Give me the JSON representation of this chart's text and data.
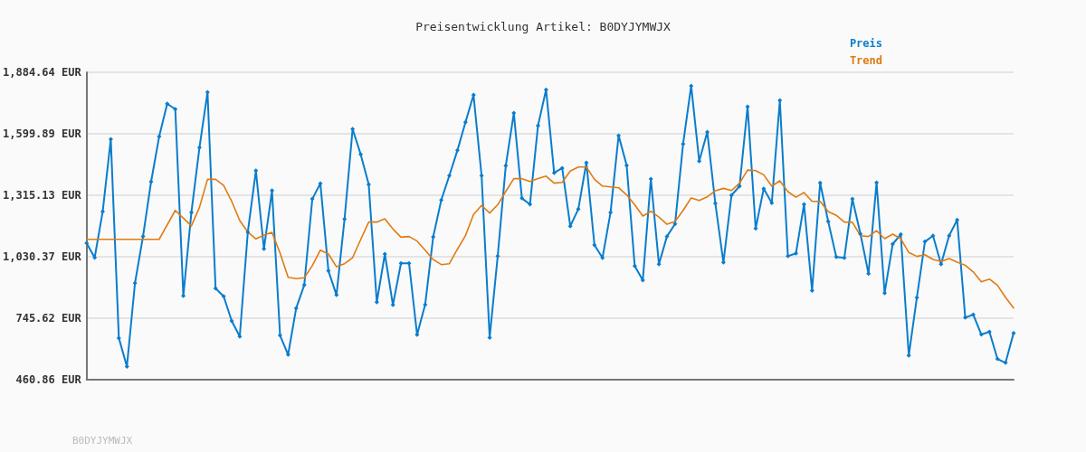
{
  "chart_data": {
    "type": "line",
    "title": "Preisentwicklung Artikel: B0DYJYMWJX",
    "annotations": [
      "B0DYJYMWJX"
    ],
    "categories": [
      null,
      null,
      null,
      null,
      null,
      null,
      null,
      null,
      null,
      null,
      null,
      null,
      null,
      null,
      null,
      null,
      null,
      null,
      null,
      null,
      null,
      null,
      null,
      null,
      null,
      null,
      null,
      null,
      null,
      null,
      null,
      null,
      null,
      null,
      null,
      null,
      null,
      null,
      null,
      null,
      null,
      null,
      null,
      null,
      null,
      null,
      null,
      null,
      null,
      null,
      null,
      null,
      null,
      null,
      null,
      null,
      null,
      null,
      null,
      null,
      null,
      null,
      null,
      null,
      null,
      null,
      null,
      null,
      null,
      null,
      null,
      null,
      null,
      null,
      null,
      null,
      null,
      null,
      null,
      null,
      null,
      null,
      null,
      null,
      null,
      null,
      null,
      null,
      null,
      null,
      null,
      null,
      null,
      null,
      null,
      null,
      null,
      null,
      null,
      null,
      null,
      null,
      null,
      null,
      null,
      null,
      null,
      null,
      null,
      null,
      null,
      null,
      null,
      null,
      null,
      null
    ],
    "series": [
      {
        "name": "Preis",
        "color": "#0a7dcc",
        "marker": "diamond",
        "values": [
          1093,
          1026,
          1240,
          1575,
          654,
          522,
          908,
          1125,
          1378,
          1587,
          1739,
          1714,
          849,
          1236,
          1536,
          1793,
          884,
          847,
          733,
          661,
          1145,
          1429,
          1067,
          1337,
          666,
          577,
          792,
          899,
          1298,
          1370,
          965,
          853,
          1205,
          1622,
          1505,
          1365,
          820,
          1043,
          807,
          1000,
          1000,
          669,
          808,
          1123,
          1293,
          1406,
          1523,
          1653,
          1780,
          1406,
          656,
          1033,
          1452,
          1696,
          1301,
          1273,
          1638,
          1804,
          1419,
          1441,
          1172,
          1251,
          1466,
          1085,
          1025,
          1236,
          1592,
          1453,
          987,
          922,
          1391,
          996,
          1125,
          1182,
          1553,
          1822,
          1473,
          1608,
          1277,
          1004,
          1315,
          1357,
          1726,
          1161,
          1346,
          1280,
          1755,
          1033,
          1046,
          1273,
          873,
          1373,
          1194,
          1029,
          1025,
          1298,
          1136,
          952,
          1374,
          862,
          1089,
          1134,
          573,
          841,
          1100,
          1128,
          996,
          1128,
          1201,
          749,
          762,
          670,
          683,
          557,
          539,
          677
        ]
      },
      {
        "name": "Trend",
        "color": "#e07b10",
        "marker": "none",
        "values": [
          1111,
          1111,
          1111,
          1111,
          1111,
          1111,
          1111,
          1111,
          1111,
          1111,
          1178,
          1245,
          1209,
          1173,
          1259,
          1389,
          1389,
          1361,
          1287,
          1198,
          1145,
          1113,
          1131,
          1143,
          1047,
          935,
          929,
          933,
          989,
          1061,
          1043,
          984,
          998,
          1026,
          1110,
          1191,
          1191,
          1206,
          1159,
          1121,
          1124,
          1103,
          1061,
          1017,
          994,
          998,
          1065,
          1128,
          1226,
          1268,
          1233,
          1271,
          1333,
          1392,
          1392,
          1379,
          1393,
          1404,
          1371,
          1375,
          1427,
          1446,
          1446,
          1389,
          1358,
          1354,
          1350,
          1317,
          1271,
          1219,
          1241,
          1214,
          1181,
          1194,
          1245,
          1303,
          1291,
          1308,
          1336,
          1347,
          1337,
          1371,
          1432,
          1429,
          1410,
          1357,
          1382,
          1332,
          1306,
          1328,
          1287,
          1287,
          1240,
          1222,
          1191,
          1190,
          1128,
          1124,
          1151,
          1114,
          1135,
          1114,
          1050,
          1032,
          1040,
          1018,
          1008,
          1022,
          1005,
          991,
          960,
          914,
          927,
          898,
          842,
          793
        ]
      }
    ],
    "ylim": [
      460.86,
      1884.64
    ],
    "yticks": [
      {
        "value": 460.86,
        "label": "460.86 EUR"
      },
      {
        "value": 745.62,
        "label": "745.62 EUR"
      },
      {
        "value": 1030.37,
        "label": "1,030.37 EUR"
      },
      {
        "value": 1315.13,
        "label": "1,315.13 EUR"
      },
      {
        "value": 1599.89,
        "label": "1,599.89 EUR"
      },
      {
        "value": 1884.64,
        "label": "1,884.64 EUR"
      }
    ],
    "grid": "y",
    "legend": "top right",
    "line_style": "solid"
  }
}
